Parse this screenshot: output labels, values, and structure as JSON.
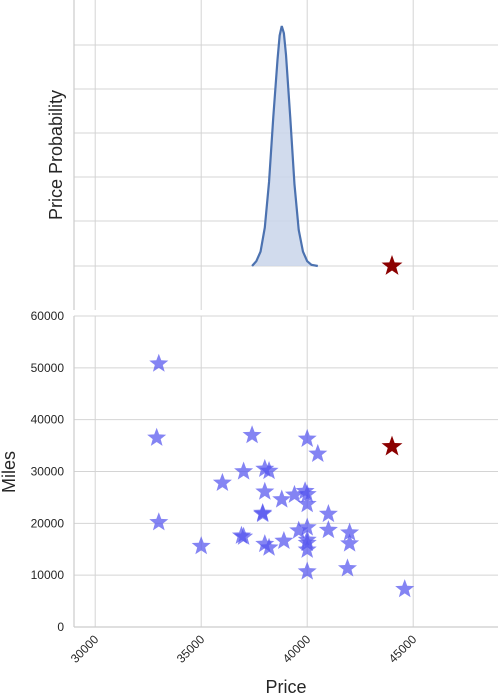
{
  "chart_data": [
    {
      "type": "area",
      "panel": "top",
      "ylabel": "Price Probability",
      "xlim": [
        29000,
        49000
      ],
      "grid": true,
      "kde_curve": {
        "x": [
          37400,
          37600,
          37800,
          38000,
          38200,
          38400,
          38600,
          38700,
          38800,
          38900,
          39000,
          39200,
          39400,
          39600,
          39800,
          40000,
          40200,
          40500
        ],
        "density": [
          0.0,
          0.02,
          0.06,
          0.16,
          0.35,
          0.62,
          0.86,
          0.96,
          1.0,
          0.97,
          0.88,
          0.62,
          0.34,
          0.15,
          0.06,
          0.02,
          0.005,
          0.0
        ],
        "color": "#4c72b0",
        "fill": "#c9d5ea"
      },
      "highlight_point": {
        "x": 44000,
        "y": 0,
        "marker": "star",
        "color": "#8b0000"
      }
    },
    {
      "type": "scatter",
      "panel": "bottom",
      "xlabel": "Price",
      "ylabel": "Miles",
      "xlim": [
        29000,
        49000
      ],
      "ylim": [
        0,
        60000
      ],
      "xticks": [
        "30000",
        "35000",
        "40000",
        "45000"
      ],
      "xtick_values": [
        30000,
        35000,
        40000,
        45000
      ],
      "yticks": [
        "0",
        "10000",
        "20000",
        "30000",
        "40000",
        "50000",
        "60000"
      ],
      "ytick_values": [
        0,
        10000,
        20000,
        30000,
        40000,
        50000,
        60000
      ],
      "grid": true,
      "marker": "star",
      "color": "#5555ee",
      "points": [
        {
          "x": 33000,
          "y": 50800
        },
        {
          "x": 32900,
          "y": 36500
        },
        {
          "x": 33000,
          "y": 20200
        },
        {
          "x": 35000,
          "y": 15600
        },
        {
          "x": 36000,
          "y": 27800
        },
        {
          "x": 36900,
          "y": 17600
        },
        {
          "x": 37000,
          "y": 17400
        },
        {
          "x": 37000,
          "y": 30000
        },
        {
          "x": 37400,
          "y": 37000
        },
        {
          "x": 37900,
          "y": 22000
        },
        {
          "x": 37900,
          "y": 21800
        },
        {
          "x": 38000,
          "y": 30500
        },
        {
          "x": 38000,
          "y": 26100
        },
        {
          "x": 38000,
          "y": 16000
        },
        {
          "x": 38200,
          "y": 15300
        },
        {
          "x": 38200,
          "y": 30100
        },
        {
          "x": 38800,
          "y": 24600
        },
        {
          "x": 38900,
          "y": 16600
        },
        {
          "x": 39400,
          "y": 25500
        },
        {
          "x": 39600,
          "y": 18600
        },
        {
          "x": 39900,
          "y": 26200
        },
        {
          "x": 40000,
          "y": 36300
        },
        {
          "x": 40000,
          "y": 25600
        },
        {
          "x": 40000,
          "y": 23700
        },
        {
          "x": 40000,
          "y": 19200
        },
        {
          "x": 40000,
          "y": 16800
        },
        {
          "x": 40000,
          "y": 16200
        },
        {
          "x": 40000,
          "y": 14900
        },
        {
          "x": 40000,
          "y": 10700
        },
        {
          "x": 40500,
          "y": 33400
        },
        {
          "x": 41000,
          "y": 21800
        },
        {
          "x": 41000,
          "y": 18700
        },
        {
          "x": 41900,
          "y": 11300
        },
        {
          "x": 42000,
          "y": 18200
        },
        {
          "x": 42000,
          "y": 16100
        },
        {
          "x": 44600,
          "y": 7300
        }
      ],
      "highlight_point": {
        "x": 44000,
        "y": 34800,
        "marker": "star",
        "color": "#8b0000"
      }
    }
  ]
}
